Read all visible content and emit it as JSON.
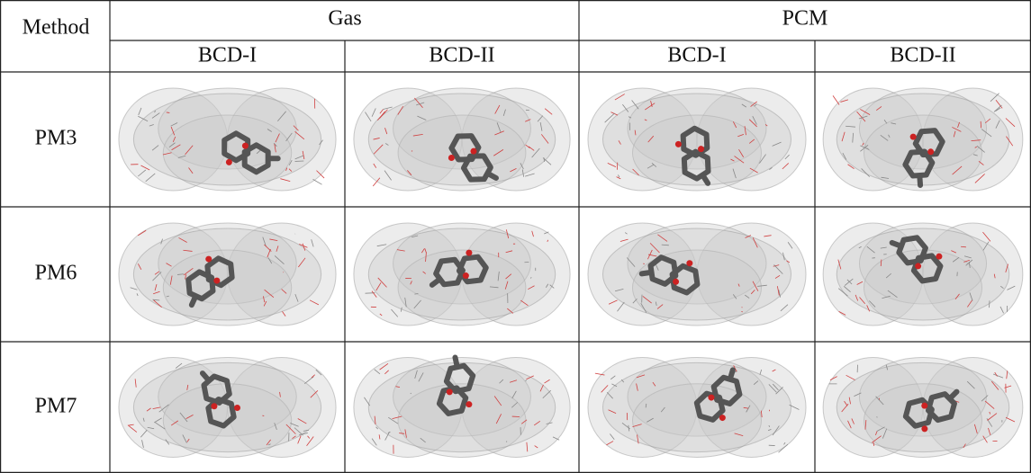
{
  "header": {
    "method": "Method",
    "groups": [
      "Gas",
      "PCM"
    ],
    "subheaders": [
      "BCD-I",
      "BCD-II",
      "BCD-I",
      "BCD-II"
    ]
  },
  "rows": [
    {
      "label": "PM3"
    },
    {
      "label": "PM6"
    },
    {
      "label": "PM7"
    }
  ]
}
